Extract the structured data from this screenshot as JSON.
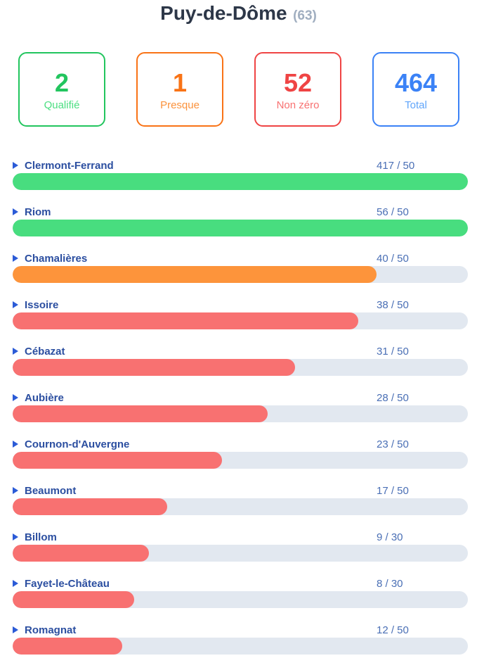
{
  "header": {
    "title": "Puy-de-Dôme",
    "count": "(63)"
  },
  "colors": {
    "qualified": "#48dd7f",
    "almost": "#fd943b",
    "nonzero": "#f87171",
    "total": "#3b82f6",
    "track": "#e2e8f0"
  },
  "stats": [
    {
      "id": "qualified",
      "value": "2",
      "label": "Qualifié",
      "color": "#22c55e",
      "label_color": "#4ade80"
    },
    {
      "id": "almost",
      "value": "1",
      "label": "Presque",
      "color": "#f97316",
      "label_color": "#fb923c"
    },
    {
      "id": "nonzero",
      "value": "52",
      "label": "Non zéro",
      "color": "#ef4444",
      "label_color": "#f87171"
    },
    {
      "id": "total",
      "value": "464",
      "label": "Total",
      "color": "#3b82f6",
      "label_color": "#60a5fa"
    }
  ],
  "rows": [
    {
      "name": "Clermont-Ferrand",
      "score": "417 / 50",
      "fraction": 1.0,
      "status": "qualified"
    },
    {
      "name": "Riom",
      "score": "56 / 50",
      "fraction": 1.0,
      "status": "qualified"
    },
    {
      "name": "Chamalières",
      "score": "40 / 50",
      "fraction": 0.8,
      "status": "almost"
    },
    {
      "name": "Issoire",
      "score": "38 / 50",
      "fraction": 0.76,
      "status": "nonzero"
    },
    {
      "name": "Cébazat",
      "score": "31 / 50",
      "fraction": 0.62,
      "status": "nonzero"
    },
    {
      "name": "Aubière",
      "score": "28 / 50",
      "fraction": 0.56,
      "status": "nonzero"
    },
    {
      "name": "Cournon-d'Auvergne",
      "score": "23 / 50",
      "fraction": 0.46,
      "status": "nonzero"
    },
    {
      "name": "Beaumont",
      "score": "17 / 50",
      "fraction": 0.34,
      "status": "nonzero"
    },
    {
      "name": "Billom",
      "score": "9 / 30",
      "fraction": 0.3,
      "status": "nonzero"
    },
    {
      "name": "Fayet-le-Château",
      "score": "8 / 30",
      "fraction": 0.267,
      "status": "nonzero"
    },
    {
      "name": "Romagnat",
      "score": "12 / 50",
      "fraction": 0.24,
      "status": "nonzero"
    }
  ]
}
